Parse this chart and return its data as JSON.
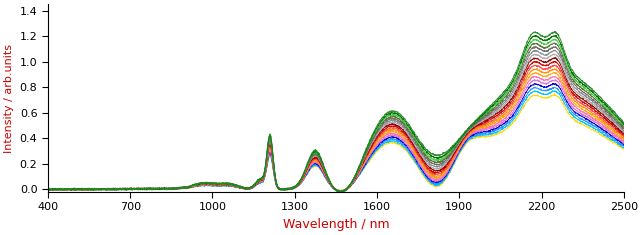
{
  "xlabel": "Wavelength / nm",
  "ylabel": "Intensity / arb.units",
  "xlabel_color": "#cc0000",
  "ylabel_color": "#cc0000",
  "xlim": [
    400,
    2500
  ],
  "ylim": [
    -0.02,
    1.45
  ],
  "xticks": [
    400,
    700,
    1000,
    1300,
    1600,
    1900,
    2200,
    2500
  ],
  "yticks": [
    0.0,
    0.2,
    0.4,
    0.6,
    0.8,
    1.0,
    1.2,
    1.4
  ],
  "figsize": [
    6.42,
    2.35
  ],
  "dpi": 100,
  "n_lines": 18,
  "colors": [
    "#228B22",
    "#006400",
    "#32CD32",
    "#556B2F",
    "#696969",
    "#888888",
    "#A9A9A9",
    "#8B0000",
    "#cc0000",
    "#FF4444",
    "#FF8C00",
    "#FFA500",
    "#FF69B4",
    "#DA70D6",
    "#0000CD",
    "#1E90FF",
    "#00BFFF",
    "#FFD700"
  ]
}
